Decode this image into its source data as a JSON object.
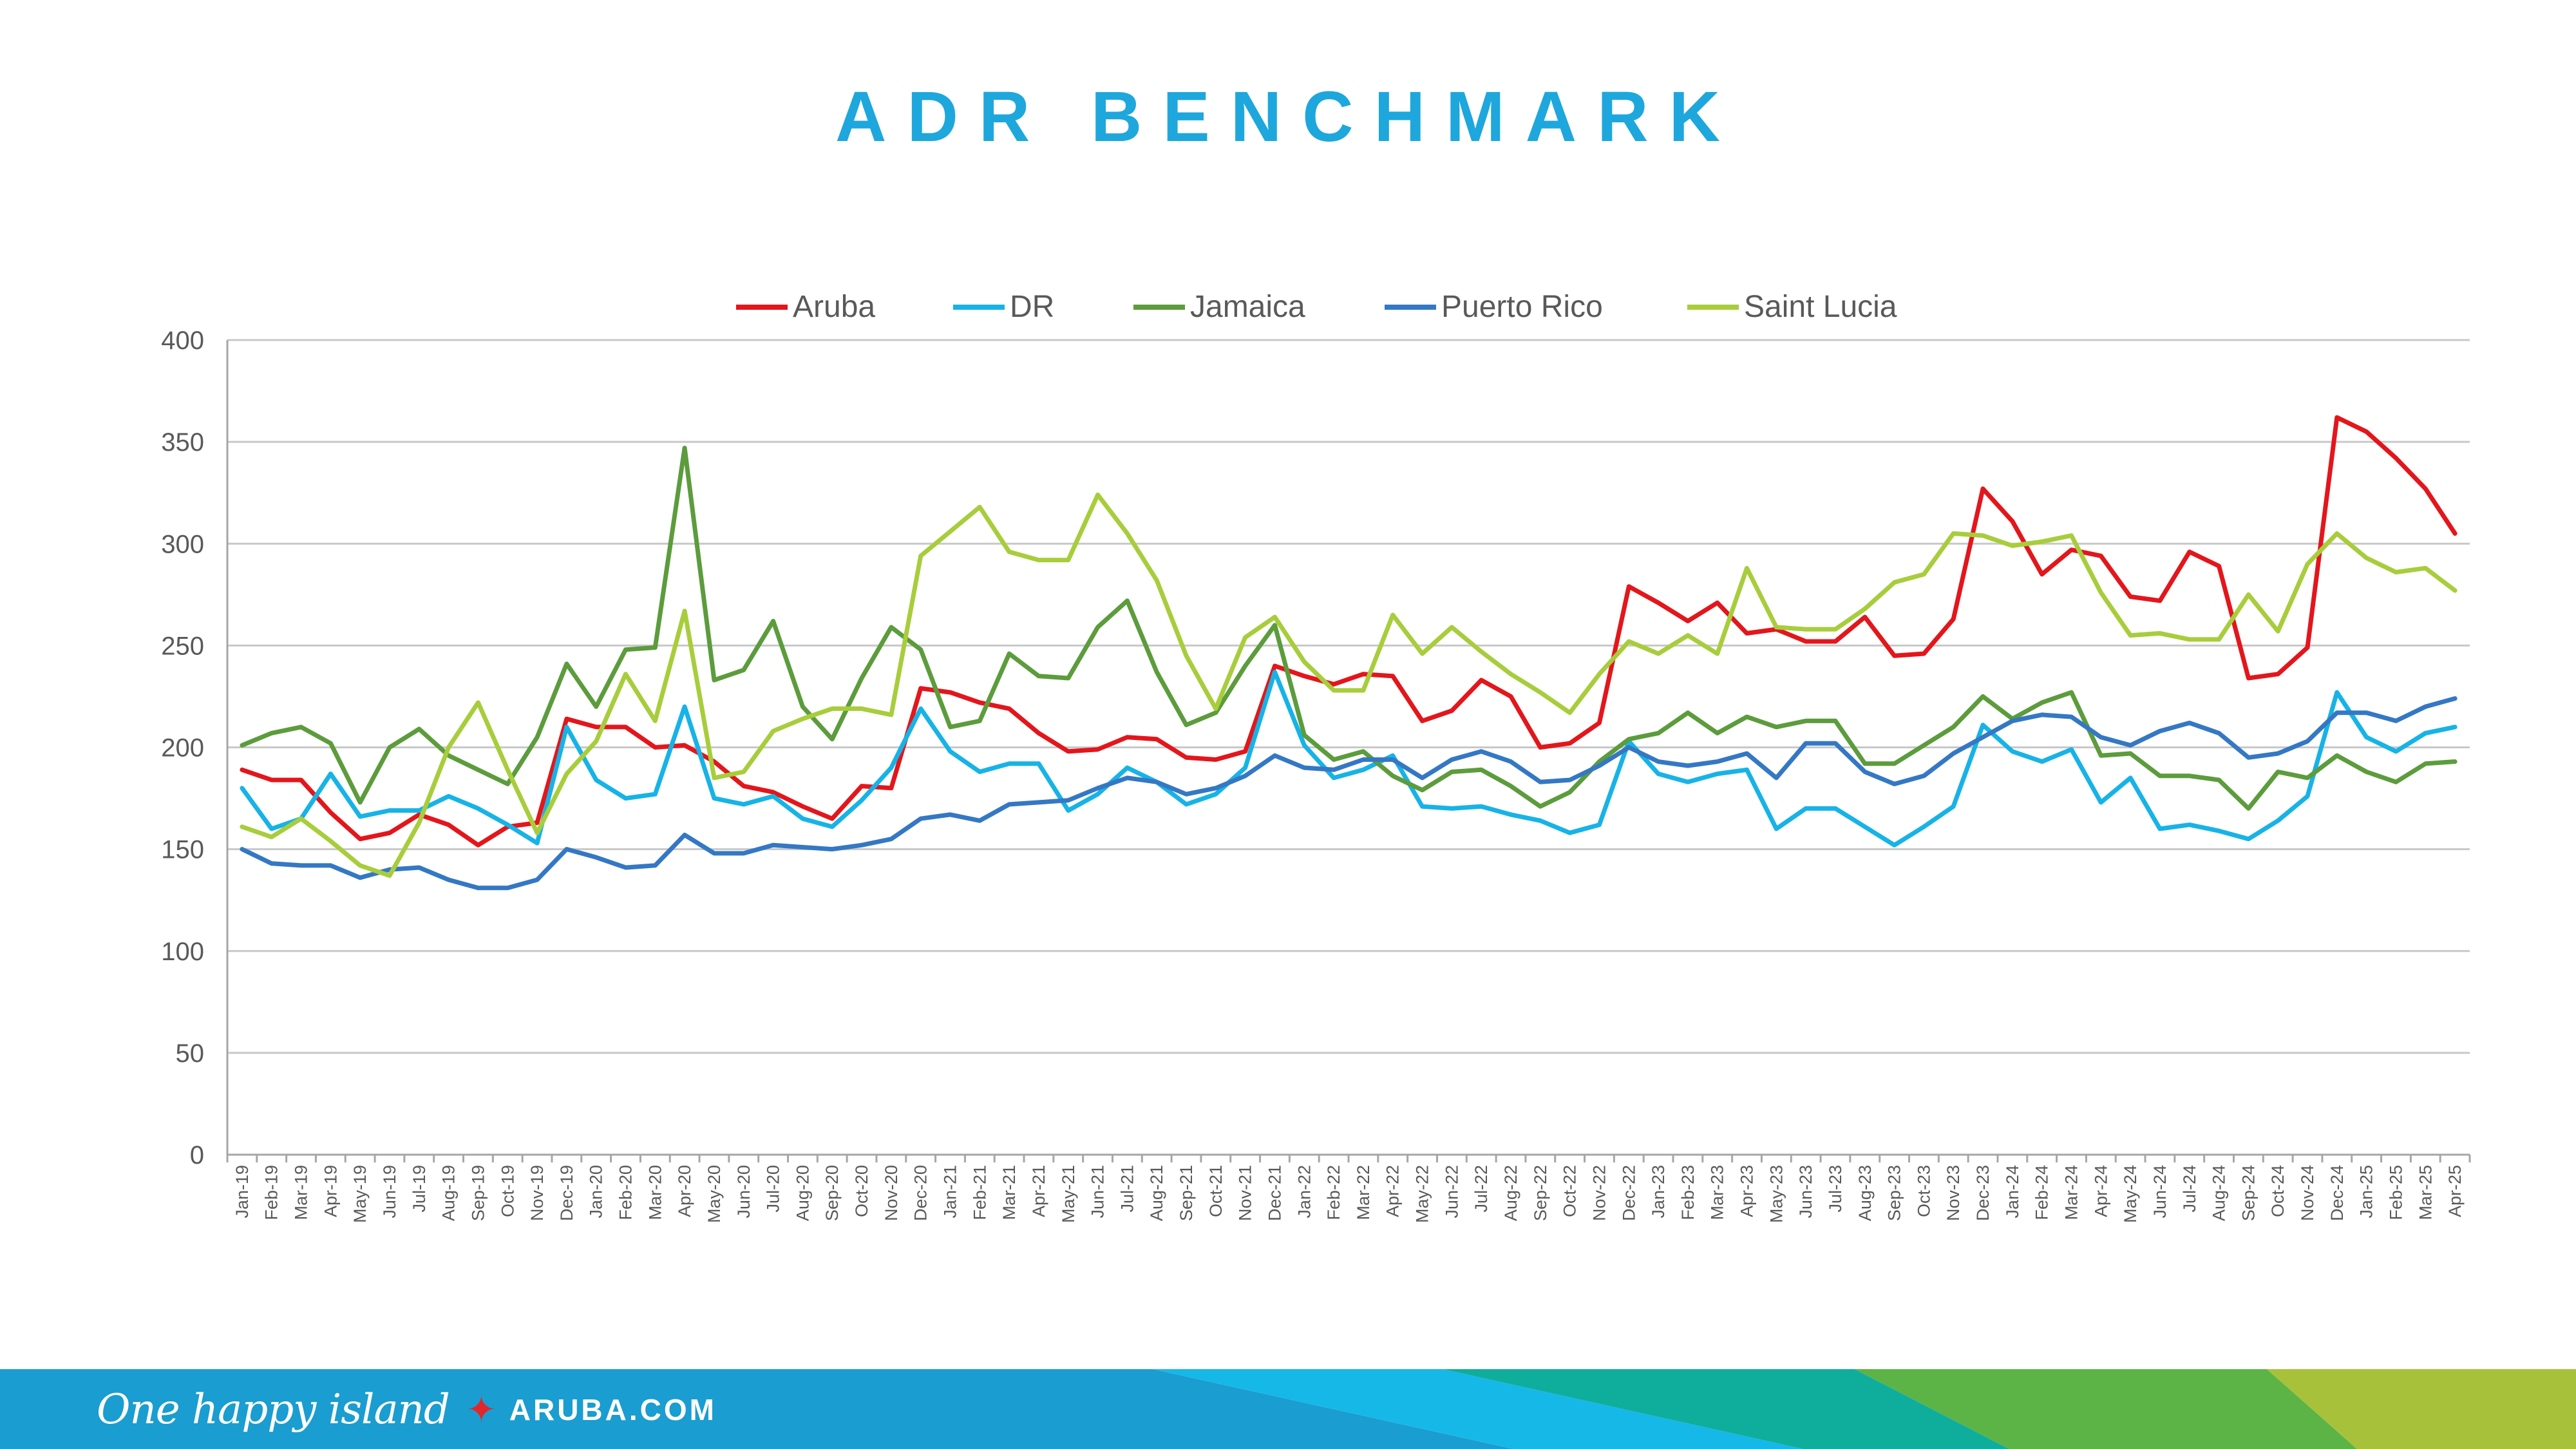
{
  "title": "ADR BENCHMARK",
  "footer": {
    "tagline": "One happy island",
    "star": "✦",
    "site": "ARUBA.COM"
  },
  "colors": {
    "Aruba": "#e3161c",
    "DR": "#17b3e6",
    "Jamaica": "#5c9c3c",
    "Puerto Rico": "#3478c4",
    "Saint Lucia": "#a8cd3c",
    "title": "#1ea7dc",
    "footer_blue": "#1a9dd0"
  },
  "chart_data": {
    "type": "line",
    "title": "ADR BENCHMARK",
    "legend_position": "top",
    "grid": true,
    "ylim": [
      0,
      400
    ],
    "yticks": [
      0,
      50,
      100,
      150,
      200,
      250,
      300,
      350,
      400
    ],
    "categories": [
      "Jan-19",
      "Feb-19",
      "Mar-19",
      "Apr-19",
      "May-19",
      "Jun-19",
      "Jul-19",
      "Aug-19",
      "Sep-19",
      "Oct-19",
      "Nov-19",
      "Dec-19",
      "Jan-20",
      "Feb-20",
      "Mar-20",
      "Apr-20",
      "May-20",
      "Jun-20",
      "Jul-20",
      "Aug-20",
      "Sep-20",
      "Oct-20",
      "Nov-20",
      "Dec-20",
      "Jan-21",
      "Feb-21",
      "Mar-21",
      "Apr-21",
      "May-21",
      "Jun-21",
      "Jul-21",
      "Aug-21",
      "Sep-21",
      "Oct-21",
      "Nov-21",
      "Dec-21",
      "Jan-22",
      "Feb-22",
      "Mar-22",
      "Apr-22",
      "May-22",
      "Jun-22",
      "Jul-22",
      "Aug-22",
      "Sep-22",
      "Oct-22",
      "Nov-22",
      "Dec-22",
      "Jan-23",
      "Feb-23",
      "Mar-23",
      "Apr-23",
      "May-23",
      "Jun-23",
      "Jul-23",
      "Aug-23",
      "Sep-23",
      "Oct-23",
      "Nov-23",
      "Dec-23",
      "Jan-24",
      "Feb-24",
      "Mar-24",
      "Apr-24",
      "May-24",
      "Jun-24",
      "Jul-24",
      "Aug-24",
      "Sep-24",
      "Oct-24",
      "Nov-24",
      "Dec-24",
      "Jan-25",
      "Feb-25",
      "Mar-25",
      "Apr-25"
    ],
    "series": [
      {
        "name": "Aruba",
        "values": [
          189,
          184,
          184,
          168,
          155,
          158,
          167,
          162,
          152,
          161,
          163,
          214,
          210,
          210,
          200,
          201,
          193,
          181,
          178,
          171,
          165,
          181,
          180,
          229,
          227,
          222,
          219,
          207,
          198,
          199,
          205,
          204,
          195,
          194,
          198,
          240,
          235,
          231,
          236,
          235,
          213,
          218,
          233,
          225,
          200,
          202,
          212,
          279,
          271,
          262,
          271,
          256,
          258,
          252,
          252,
          264,
          245,
          246,
          263,
          327,
          311,
          285,
          297,
          294,
          274,
          272,
          296,
          289,
          234,
          236,
          249,
          362,
          355,
          342,
          327,
          305
        ]
      },
      {
        "name": "DR",
        "values": [
          180,
          160,
          165,
          187,
          166,
          169,
          169,
          176,
          170,
          162,
          153,
          210,
          184,
          175,
          177,
          220,
          175,
          172,
          176,
          165,
          161,
          174,
          190,
          219,
          198,
          188,
          192,
          192,
          169,
          177,
          190,
          183,
          172,
          177,
          190,
          237,
          201,
          185,
          189,
          196,
          171,
          170,
          171,
          167,
          164,
          158,
          162,
          203,
          187,
          183,
          187,
          189,
          160,
          170,
          170,
          161,
          152,
          161,
          171,
          211,
          198,
          193,
          199,
          173,
          185,
          160,
          162,
          159,
          155,
          164,
          176,
          227,
          205,
          198,
          207,
          210
        ]
      },
      {
        "name": "Jamaica",
        "values": [
          201,
          207,
          210,
          202,
          173,
          200,
          209,
          196,
          189,
          182,
          205,
          241,
          220,
          248,
          249,
          347,
          233,
          238,
          262,
          220,
          204,
          234,
          259,
          248,
          210,
          213,
          246,
          235,
          234,
          259,
          272,
          237,
          211,
          217,
          240,
          260,
          206,
          194,
          198,
          186,
          179,
          188,
          189,
          181,
          171,
          178,
          193,
          204,
          207,
          217,
          207,
          215,
          210,
          213,
          213,
          192,
          192,
          201,
          210,
          225,
          214,
          222,
          227,
          196,
          197,
          186,
          186,
          184,
          170,
          188,
          185,
          196,
          188,
          183,
          192,
          193
        ]
      },
      {
        "name": "Puerto Rico",
        "values": [
          150,
          143,
          142,
          142,
          136,
          140,
          141,
          135,
          131,
          131,
          135,
          150,
          146,
          141,
          142,
          157,
          148,
          148,
          152,
          151,
          150,
          152,
          155,
          165,
          167,
          164,
          172,
          173,
          174,
          180,
          185,
          183,
          177,
          180,
          186,
          196,
          190,
          189,
          194,
          194,
          185,
          194,
          198,
          193,
          183,
          184,
          191,
          200,
          193,
          191,
          193,
          197,
          185,
          202,
          202,
          188,
          182,
          186,
          197,
          205,
          213,
          216,
          215,
          205,
          201,
          208,
          212,
          207,
          195,
          197,
          203,
          217,
          217,
          213,
          220,
          224
        ]
      },
      {
        "name": "Saint Lucia",
        "values": [
          161,
          156,
          165,
          154,
          142,
          137,
          163,
          200,
          222,
          189,
          158,
          187,
          203,
          236,
          213,
          267,
          185,
          188,
          208,
          214,
          219,
          219,
          216,
          294,
          306,
          318,
          296,
          292,
          292,
          324,
          305,
          282,
          245,
          219,
          254,
          264,
          242,
          228,
          228,
          265,
          246,
          259,
          247,
          236,
          227,
          217,
          236,
          252,
          246,
          255,
          246,
          288,
          259,
          258,
          258,
          268,
          281,
          285,
          305,
          304,
          299,
          301,
          304,
          276,
          255,
          256,
          253,
          253,
          275,
          257,
          290,
          305,
          293,
          286,
          288,
          277
        ]
      }
    ]
  }
}
